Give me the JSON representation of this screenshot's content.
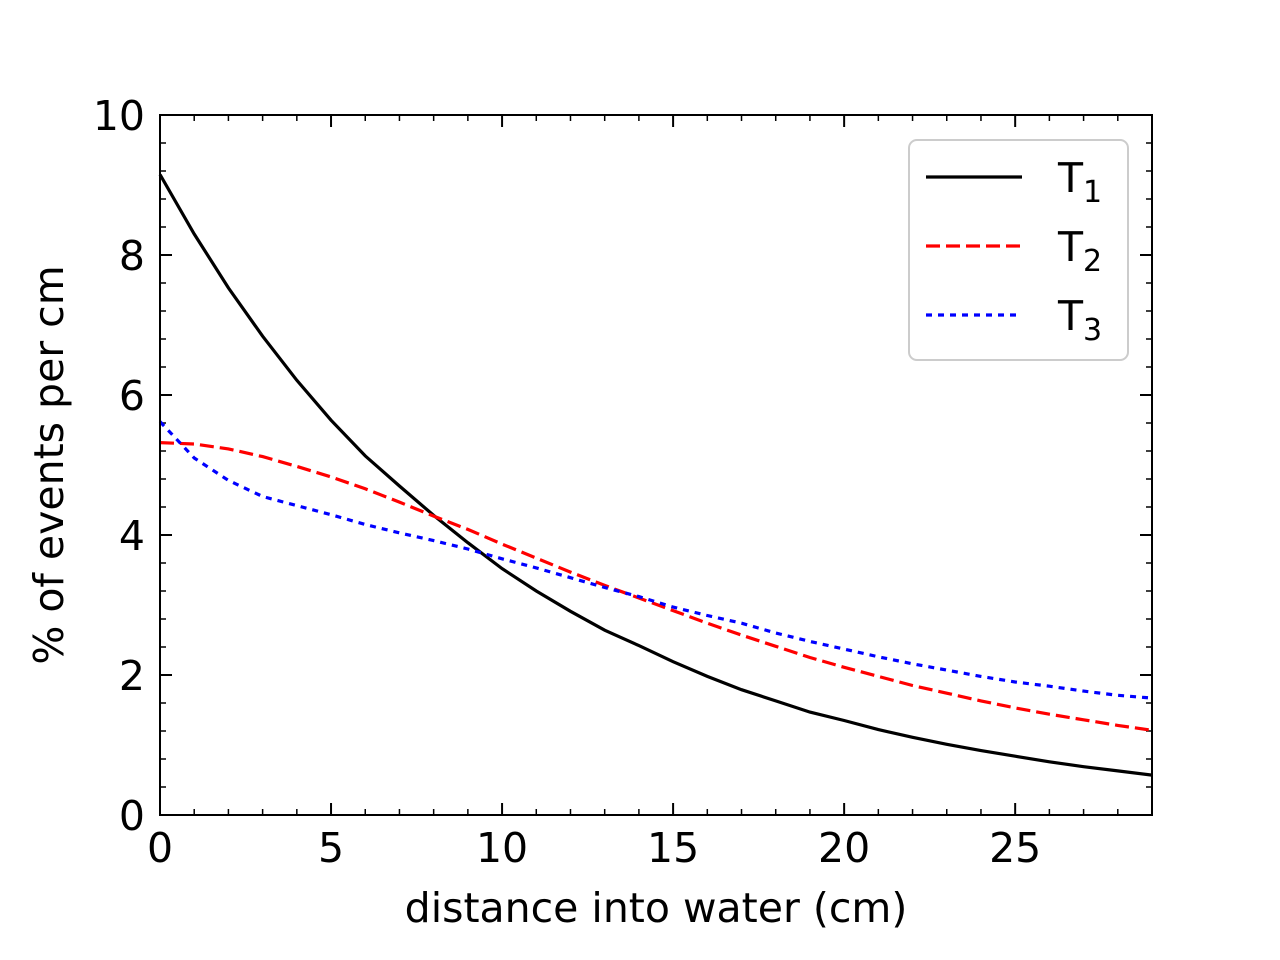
{
  "chart_data": {
    "type": "line",
    "title": "",
    "xlabel": "distance into water (cm)",
    "ylabel": "% of events per cm",
    "xlim": [
      0,
      29
    ],
    "ylim": [
      0,
      10
    ],
    "xticks": [
      0,
      5,
      10,
      15,
      20,
      25
    ],
    "yticks": [
      0,
      2,
      4,
      6,
      8,
      10
    ],
    "xtick_labels": [
      "0",
      "5",
      "10",
      "15",
      "20",
      "25"
    ],
    "ytick_labels": [
      "0",
      "2",
      "4",
      "6",
      "8",
      "10"
    ],
    "grid": false,
    "legend_position": "top-right",
    "x": [
      0,
      1,
      2,
      3,
      4,
      5,
      6,
      7,
      8,
      9,
      10,
      11,
      12,
      13,
      14,
      15,
      16,
      17,
      18,
      19,
      20,
      21,
      22,
      23,
      24,
      25,
      26,
      27,
      28,
      29
    ],
    "series": [
      {
        "name": "T",
        "subscript": "1",
        "color": "#000000",
        "style": "solid",
        "values": [
          9.15,
          8.3,
          7.53,
          6.84,
          6.21,
          5.64,
          5.13,
          4.7,
          4.28,
          3.89,
          3.52,
          3.2,
          2.91,
          2.64,
          2.42,
          2.19,
          1.98,
          1.79,
          1.63,
          1.47,
          1.35,
          1.22,
          1.11,
          1.01,
          0.92,
          0.84,
          0.76,
          0.69,
          0.63,
          0.57
        ]
      },
      {
        "name": "T",
        "subscript": "2",
        "color": "#ff0000",
        "style": "dashed",
        "values": [
          5.32,
          5.3,
          5.23,
          5.12,
          4.98,
          4.83,
          4.66,
          4.47,
          4.27,
          4.08,
          3.87,
          3.67,
          3.47,
          3.28,
          3.1,
          2.92,
          2.74,
          2.57,
          2.41,
          2.25,
          2.11,
          1.98,
          1.85,
          1.74,
          1.63,
          1.53,
          1.44,
          1.36,
          1.28,
          1.21
        ]
      },
      {
        "name": "T",
        "subscript": "3",
        "color": "#0000ff",
        "style": "dotted",
        "values": [
          5.62,
          5.1,
          4.78,
          4.55,
          4.42,
          4.29,
          4.15,
          4.03,
          3.92,
          3.8,
          3.66,
          3.53,
          3.39,
          3.25,
          3.12,
          2.97,
          2.85,
          2.74,
          2.6,
          2.48,
          2.37,
          2.26,
          2.16,
          2.07,
          1.98,
          1.9,
          1.84,
          1.77,
          1.71,
          1.67
        ]
      }
    ]
  }
}
